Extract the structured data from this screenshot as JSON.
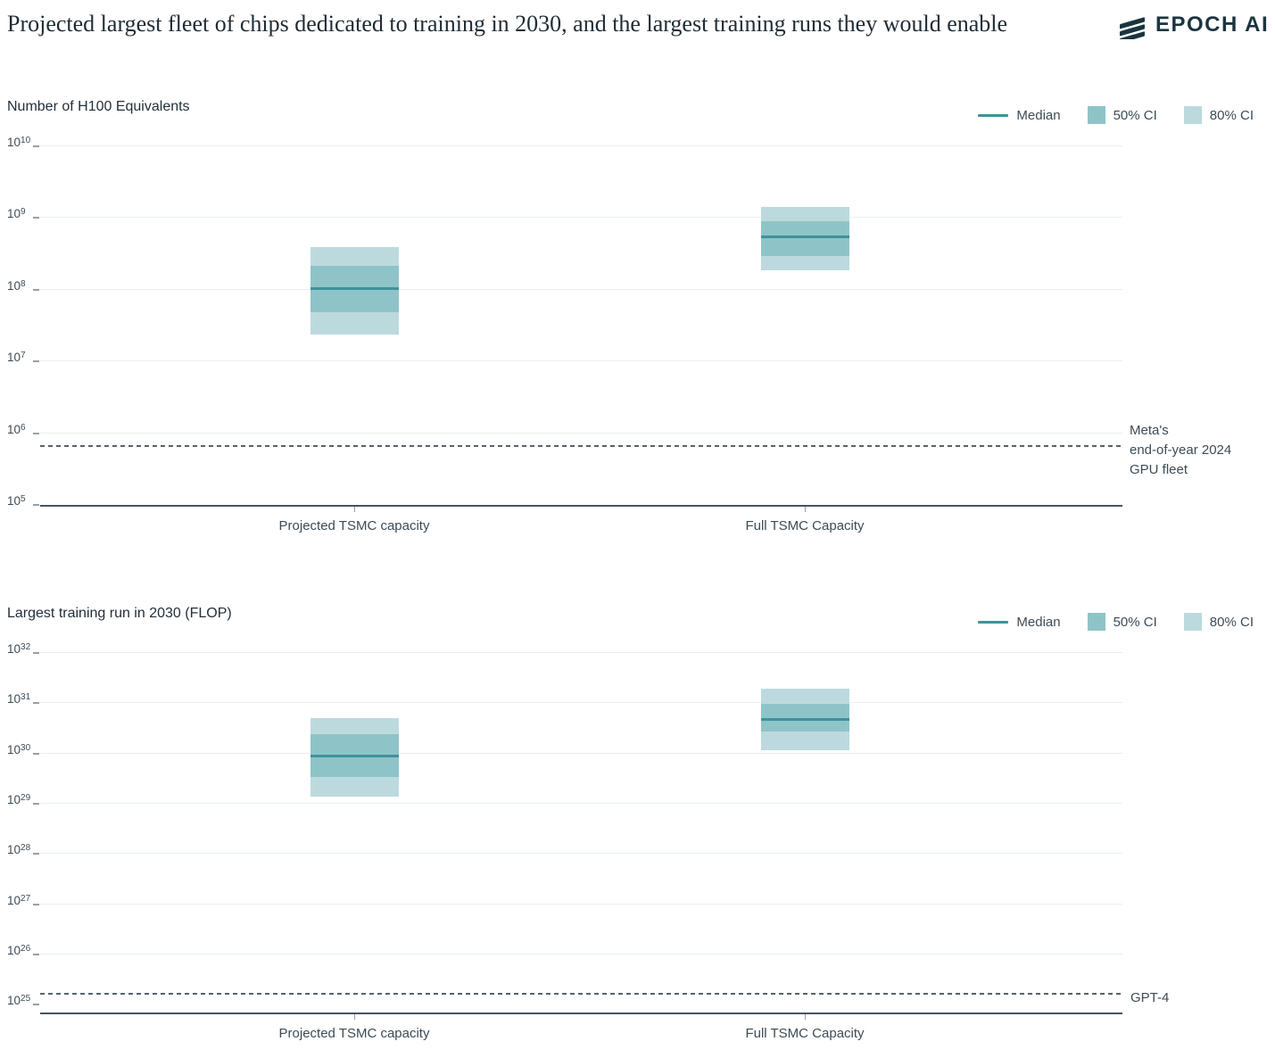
{
  "header": {
    "title": "Projected largest fleet of chips dedicated to training in 2030, and the largest training runs they would enable",
    "logo_text": "EPOCH AI"
  },
  "legend": {
    "median_label": "Median",
    "ci50_label": "50% CI",
    "ci80_label": "80% CI"
  },
  "colors": {
    "median": "#3f929a",
    "ci50": "#8ec4c8",
    "ci80": "#bcdade",
    "gridline": "#e9eef1",
    "axis": "#47545e",
    "tick": "#95a1a9",
    "text": "#3c4b56",
    "reference_line": "#55626d",
    "title_text": "#1e2c35",
    "logo": "#1b3540"
  },
  "chart_data": [
    {
      "type": "boxplot-log",
      "title": "Number of H100 Equivalents",
      "xlabel": "",
      "ylabel": "Number of H100 Equivalents",
      "grid": true,
      "legend_position": "top-right",
      "legend_entries": [
        "Median",
        "50% CI",
        "80% CI"
      ],
      "categories": [
        "Projected TSMC capacity",
        "Full TSMC Capacity"
      ],
      "y_tick_exponents": [
        10,
        9,
        8,
        7,
        6,
        5
      ],
      "ylim": [
        100000.0,
        10000000000.0
      ],
      "series": [
        {
          "category": "Projected TSMC capacity",
          "median": 100000000.0,
          "ci50": [
            47000000.0,
            210000000.0
          ],
          "ci80": [
            23000000.0,
            380000000.0
          ]
        },
        {
          "category": "Full TSMC Capacity",
          "median": 530000000.0,
          "ci50": [
            290000000.0,
            870000000.0
          ],
          "ci80": [
            180000000.0,
            1400000000.0
          ]
        }
      ],
      "reference_line": {
        "value": 650000.0,
        "label_lines": [
          "Meta's",
          "end-of-year 2024",
          "GPU fleet"
        ]
      }
    },
    {
      "type": "boxplot-log",
      "title": "Largest training run in 2030 (FLOP)",
      "xlabel": "",
      "ylabel": "Largest training run in 2030 (FLOP)",
      "grid": true,
      "legend_position": "top-right",
      "legend_entries": [
        "Median",
        "50% CI",
        "80% CI"
      ],
      "categories": [
        "Projected TSMC capacity",
        "Full TSMC Capacity"
      ],
      "y_tick_exponents": [
        32,
        31,
        30,
        29,
        28,
        27,
        26,
        25
      ],
      "ylim": [
        1e+25,
        1e+32
      ],
      "series": [
        {
          "category": "Projected TSMC capacity",
          "median": 8.5e+29,
          "ci50": [
            3.2e+29,
            2.3e+30
          ],
          "ci80": [
            1.3e+29,
            4.9e+30
          ]
        },
        {
          "category": "Full TSMC Capacity",
          "median": 4.6e+30,
          "ci50": [
            2.6e+30,
            9.2e+30
          ],
          "ci80": [
            1.1e+30,
            1.9e+31
          ]
        }
      ],
      "reference_line": {
        "value": 1.6e+25,
        "label_lines": [
          "GPT-4"
        ]
      }
    }
  ]
}
